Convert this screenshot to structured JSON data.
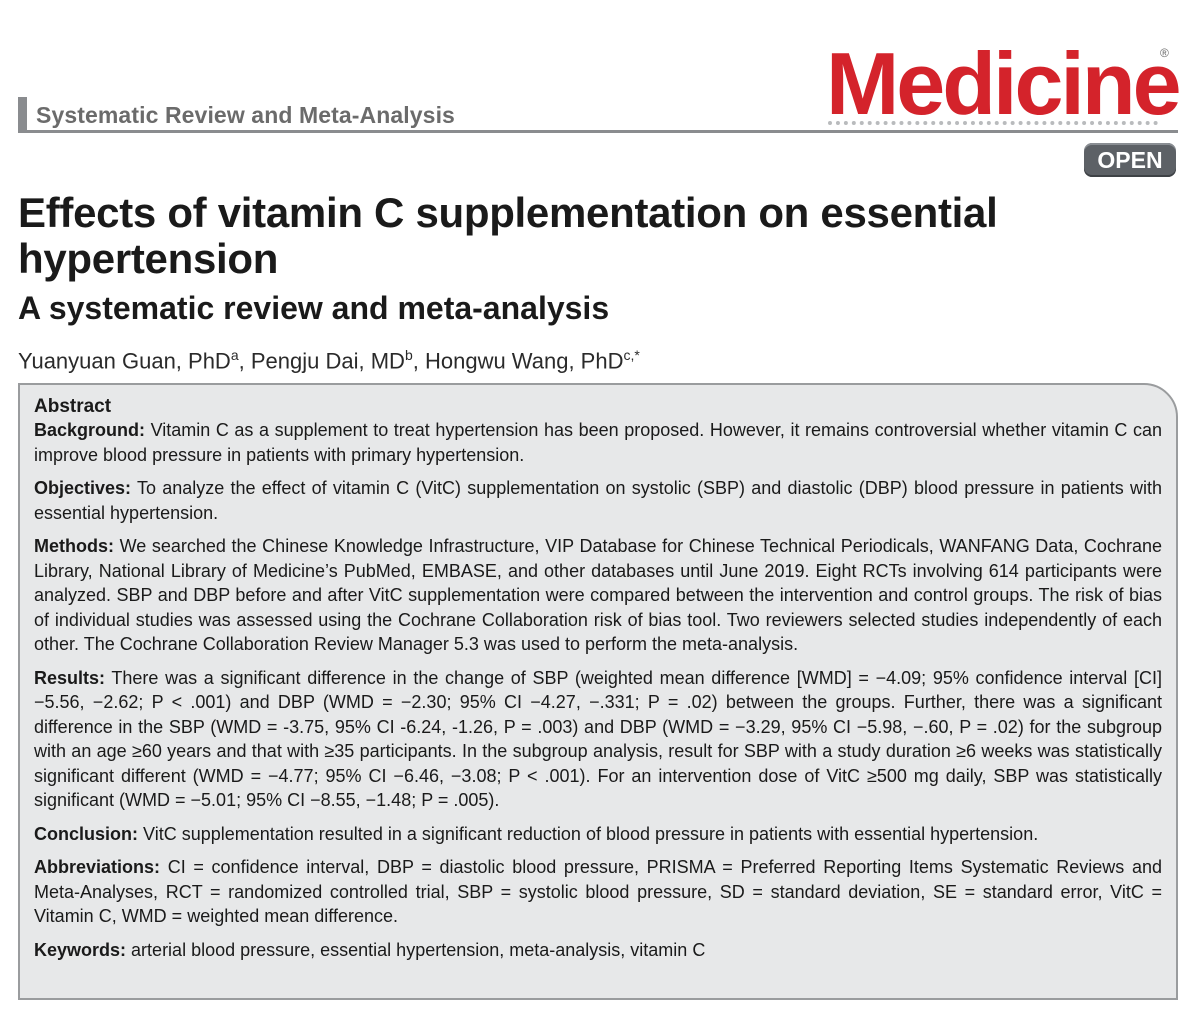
{
  "header": {
    "section_label": "Systematic Review and Meta-Analysis",
    "journal_logo": "Medicine",
    "registered_mark": "®",
    "open_badge": "OPEN"
  },
  "article": {
    "title": "Effects of vitamin C supplementation on essential hypertension",
    "subtitle": "A systematic review and meta-analysis",
    "authors": [
      {
        "name": "Yuanyuan Guan, PhD",
        "sup": "a",
        "sep": ", "
      },
      {
        "name": "Pengju Dai, MD",
        "sup": "b",
        "sep": ", "
      },
      {
        "name": "Hongwu Wang, PhD",
        "sup": "c,*",
        "sep": ""
      }
    ]
  },
  "abstract": {
    "heading": "Abstract",
    "sections": [
      {
        "label": "Background:",
        "text": "Vitamin C as a supplement to treat hypertension has been proposed. However, it remains controversial whether vitamin C can improve blood pressure in patients with primary hypertension."
      },
      {
        "label": "Objectives:",
        "text": "To analyze the effect of vitamin C (VitC) supplementation on systolic (SBP) and diastolic (DBP) blood pressure in patients with essential hypertension."
      },
      {
        "label": "Methods:",
        "text": "We searched the Chinese Knowledge Infrastructure, VIP Database for Chinese Technical Periodicals, WANFANG Data, Cochrane Library, National Library of Medicine’s PubMed, EMBASE, and other databases until June 2019. Eight RCTs involving 614 participants were analyzed. SBP and DBP before and after VitC supplementation were compared between the intervention and control groups. The risk of bias of individual studies was assessed using the Cochrane Collaboration risk of bias tool. Two reviewers selected studies independently of each other. The Cochrane Collaboration Review Manager 5.3 was used to perform the meta-analysis."
      },
      {
        "label": "Results:",
        "text": "There was a significant difference in the change of SBP (weighted mean difference [WMD] = −4.09; 95% confidence interval [CI] −5.56, −2.62; P < .001) and DBP (WMD = −2.30; 95% CI −4.27, −.331; P = .02) between the groups. Further, there was a significant difference in the SBP (WMD = -3.75, 95% CI -6.24, -1.26, P = .003) and DBP (WMD = −3.29, 95% CI −5.98, −.60, P = .02) for the subgroup with an age ≥60 years and that with ≥35 participants. In the subgroup analysis, result for SBP with a study duration ≥6 weeks was statistically significant different (WMD = −4.77; 95% CI −6.46, −3.08; P < .001). For an intervention dose of VitC ≥500 mg daily, SBP was statistically significant (WMD = −5.01; 95% CI −8.55, −1.48; P = .005)."
      },
      {
        "label": "Conclusion:",
        "text": "VitC supplementation resulted in a significant reduction of blood pressure in patients with essential hypertension."
      },
      {
        "label": "Abbreviations:",
        "text": "CI = confidence interval, DBP = diastolic blood pressure, PRISMA = Preferred Reporting Items Systematic Reviews and Meta-Analyses, RCT = randomized controlled trial, SBP = systolic blood pressure, SD = standard deviation, SE = standard error, VitC = Vitamin C, WMD = weighted mean difference."
      },
      {
        "label": "Keywords:",
        "text": "arterial blood pressure, essential hypertension, meta-analysis, vitamin C"
      }
    ]
  },
  "colors": {
    "logo_red": "#d4232b",
    "section_gray": "#8a8c8f",
    "badge_gray": "#5d6166",
    "abstract_bg": "#e7e8e9"
  }
}
